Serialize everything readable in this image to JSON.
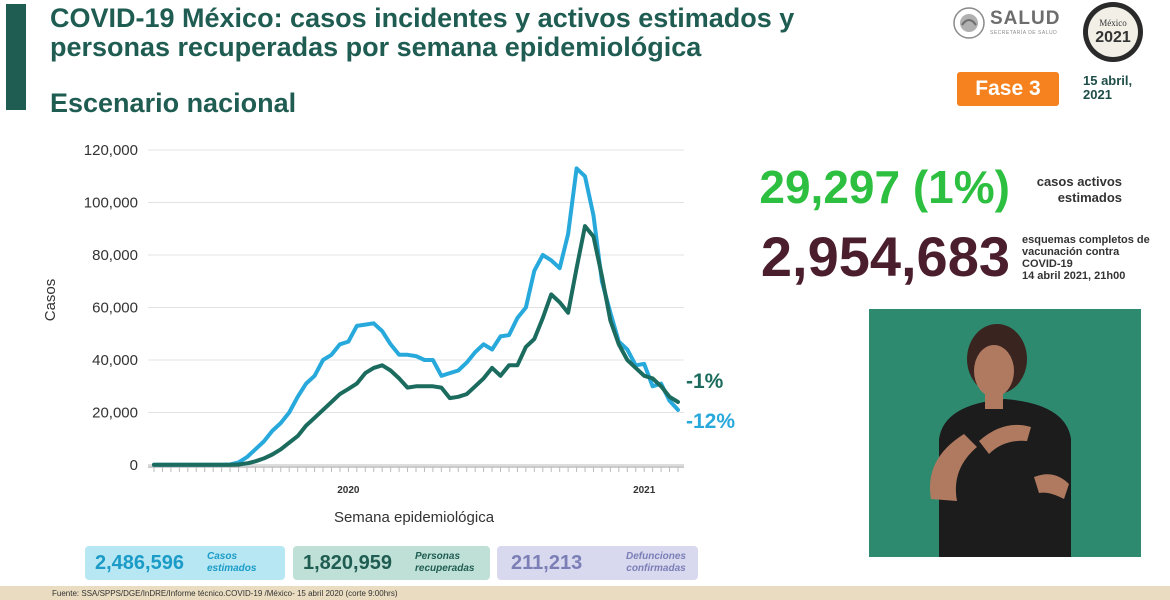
{
  "header": {
    "title": "COVID-19 México: casos incidentes y activos estimados y personas recuperadas por semana epidemiológica",
    "subtitle": "Escenario nacional",
    "logo_text": "SALUD",
    "logo_subtext": "SECRETARÍA DE SALUD",
    "seal_text": "México 2021",
    "phase_badge": "Fase 3",
    "date": "15 abril, 2021"
  },
  "kpis": {
    "active_value": "29,297 (1%)",
    "active_label": "casos activos estimados",
    "vaccination_value": "2,954,683",
    "vaccination_label": "esquemas completos de vacunación contra COVID-19",
    "vaccination_date": "14 abril 2021, 21h00"
  },
  "summary": {
    "cases_value": "2,486,596",
    "cases_label": "Casos estimados",
    "recovered_value": "1,820,959",
    "recovered_label": "Personas recuperadas",
    "deaths_value": "211,213",
    "deaths_label": "Defunciones confirmadas"
  },
  "footer": {
    "source": "Fuente: SSA/SPPS/DGE/InDRE/Informe técnico.COVID-19 /México- 15 abril 2020 (corte 9:00hrs)"
  },
  "colors": {
    "incident": "#28a9dc",
    "recovered": "#1b6b5e",
    "accent": "#f5821f",
    "active_green": "#2dbf3f",
    "vacc_maroon": "#4a1e2c"
  },
  "chart_data": {
    "type": "line",
    "xlabel": "Semana epidemiológica",
    "ylabel": "Casos",
    "ylim": [
      0,
      120000
    ],
    "yticks": [
      "0",
      "20,000",
      "40,000",
      "60,000",
      "80,000",
      "100,000",
      "120,000"
    ],
    "year_labels": [
      {
        "label": "2020",
        "at_index": 23
      },
      {
        "label": "2021",
        "at_index": 58
      }
    ],
    "series": [
      {
        "values": [
          100,
          100,
          100,
          100,
          100,
          100,
          100,
          100,
          100,
          200,
          1000,
          3000,
          6000,
          9000,
          13000,
          16000,
          20000,
          26000,
          31000,
          34000,
          40000,
          42000,
          46000,
          47000,
          53000,
          53500,
          54000,
          51000,
          46000,
          42000,
          42000,
          41500,
          40000,
          40000,
          34000,
          35000,
          36000,
          39000,
          43000,
          46000,
          44000,
          49000,
          49500,
          56000,
          60000,
          74000,
          80000,
          78000,
          75000,
          88000,
          113000,
          110000,
          95000,
          70000,
          58000,
          47000,
          44000,
          38000,
          38500,
          30000,
          31000,
          24500,
          21000
        ]
      },
      {
        "values": [
          100,
          100,
          100,
          100,
          100,
          100,
          100,
          100,
          100,
          100,
          200,
          600,
          1400,
          2500,
          4000,
          6000,
          8500,
          11000,
          15000,
          18000,
          21000,
          24000,
          27000,
          29000,
          31000,
          35000,
          37000,
          38000,
          36000,
          33000,
          29500,
          30000,
          30000,
          30000,
          29500,
          25500,
          26000,
          27000,
          30000,
          33000,
          37000,
          34000,
          38000,
          38000,
          45000,
          48000,
          56000,
          65000,
          62000,
          58000,
          75000,
          91000,
          87000,
          72000,
          55000,
          46000,
          40000,
          37000,
          34000,
          33000,
          30000,
          26000,
          24000
        ]
      }
    ],
    "end_labels": [
      {
        "series_index": 1,
        "label": "-1%"
      },
      {
        "series_index": 0,
        "label": "-12%"
      }
    ]
  }
}
